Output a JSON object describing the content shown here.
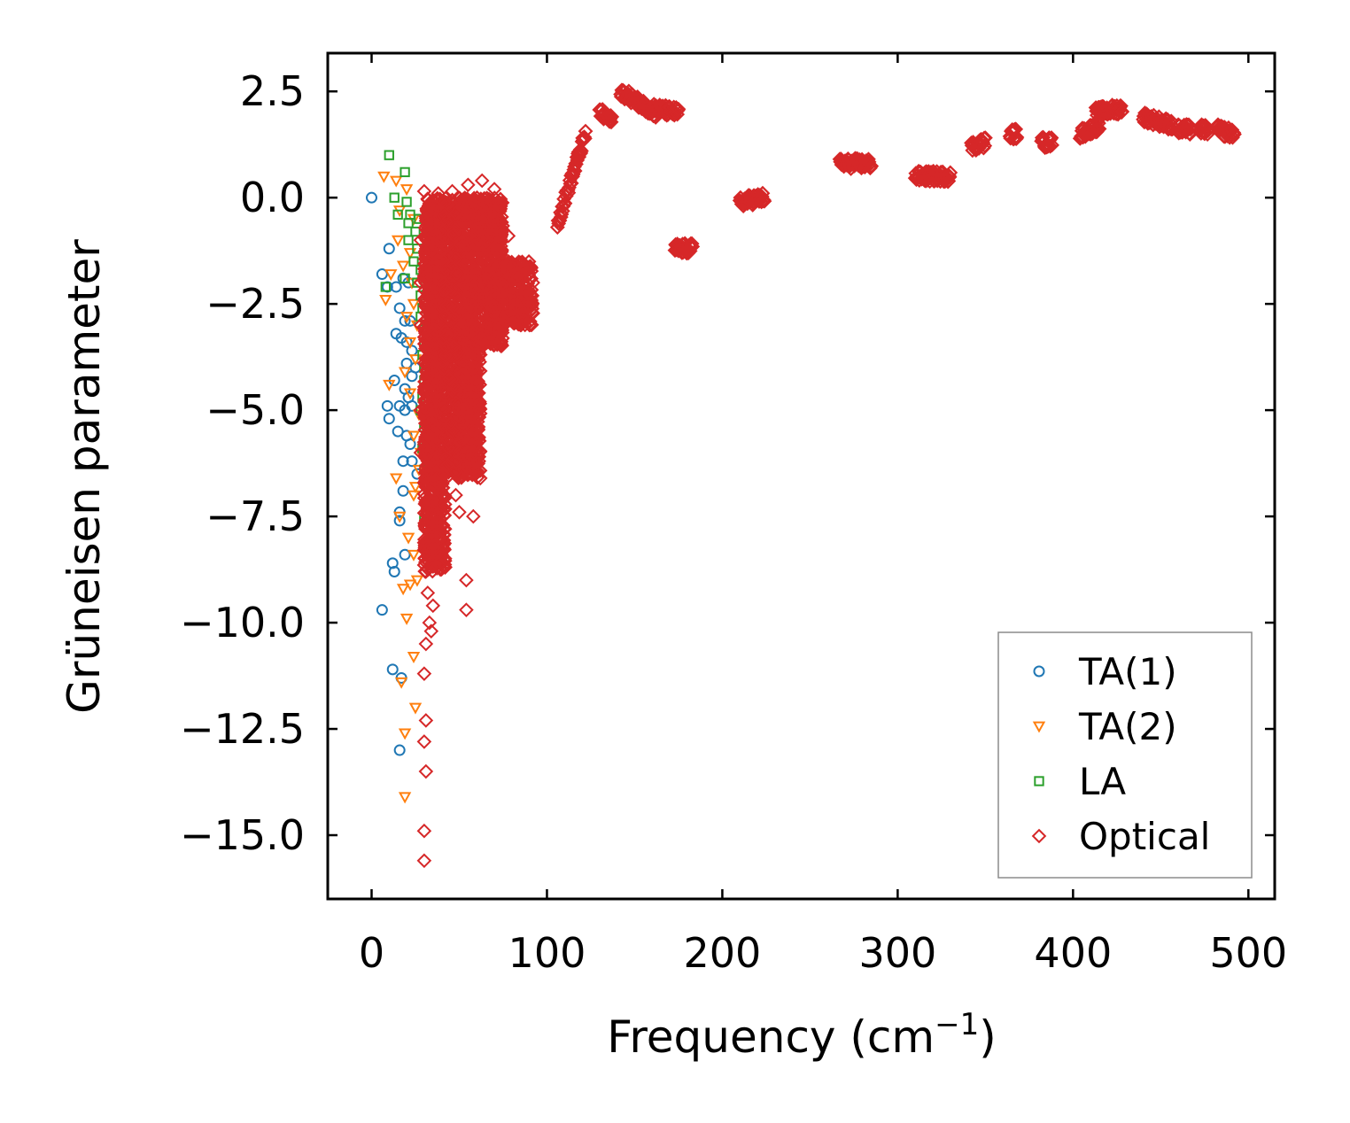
{
  "chart_data": {
    "type": "scatter",
    "title": "",
    "xlabel": "Frequency (cm",
    "xlabel_sup": "−1",
    "xlabel_close": ")",
    "ylabel": "Grüneisen parameter",
    "xlim": [
      -25,
      515
    ],
    "ylim": [
      -16.5,
      3.4
    ],
    "xticks": [
      0,
      100,
      200,
      300,
      400,
      500
    ],
    "xtick_labels": [
      "0",
      "100",
      "200",
      "300",
      "400",
      "500"
    ],
    "yticks": [
      2.5,
      0.0,
      -2.5,
      -5.0,
      -7.5,
      -10.0,
      -12.5,
      -15.0
    ],
    "ytick_labels": [
      "2.5",
      "0.0",
      "−2.5",
      "−5.0",
      "−7.5",
      "−10.0",
      "−12.5",
      "−15.0"
    ],
    "grid": false,
    "legend_position": "bottom-right",
    "series": [
      {
        "name": "TA(1)",
        "marker": "circle",
        "color": "#1f77b4",
        "points": [
          [
            0,
            0
          ],
          [
            10,
            -1.2
          ],
          [
            6,
            -1.8
          ],
          [
            9,
            -2.1
          ],
          [
            14,
            -2.1
          ],
          [
            18,
            -1.9
          ],
          [
            21,
            -2.0
          ],
          [
            16,
            -2.6
          ],
          [
            19,
            -2.9
          ],
          [
            22,
            -2.9
          ],
          [
            14,
            -3.2
          ],
          [
            17,
            -3.3
          ],
          [
            20,
            -3.4
          ],
          [
            23,
            -3.6
          ],
          [
            20,
            -3.9
          ],
          [
            25,
            -4.0
          ],
          [
            23,
            -4.2
          ],
          [
            13,
            -4.3
          ],
          [
            19,
            -4.5
          ],
          [
            21,
            -4.7
          ],
          [
            9,
            -4.9
          ],
          [
            16,
            -4.9
          ],
          [
            19,
            -5.0
          ],
          [
            23,
            -4.9
          ],
          [
            10,
            -5.2
          ],
          [
            15,
            -5.5
          ],
          [
            20,
            -5.6
          ],
          [
            22,
            -5.8
          ],
          [
            18,
            -6.2
          ],
          [
            23,
            -6.2
          ],
          [
            26,
            -6.5
          ],
          [
            18,
            -6.9
          ],
          [
            16,
            -7.4
          ],
          [
            16,
            -7.6
          ],
          [
            19,
            -8.4
          ],
          [
            12,
            -8.6
          ],
          [
            13,
            -8.8
          ],
          [
            6,
            -9.7
          ],
          [
            12,
            -11.1
          ],
          [
            17,
            -11.3
          ],
          [
            16,
            -13.0
          ]
        ]
      },
      {
        "name": "TA(2)",
        "marker": "triangle-down",
        "color": "#ff7f0e",
        "points": [
          [
            7,
            0.5
          ],
          [
            14,
            0.4
          ],
          [
            20,
            0.2
          ],
          [
            16,
            -0.3
          ],
          [
            24,
            -0.5
          ],
          [
            15,
            -1.0
          ],
          [
            22,
            -1.3
          ],
          [
            18,
            -1.6
          ],
          [
            11,
            -1.8
          ],
          [
            23,
            -2.0
          ],
          [
            8,
            -2.4
          ],
          [
            24,
            -2.5
          ],
          [
            20,
            -2.8
          ],
          [
            26,
            -3.0
          ],
          [
            22,
            -3.4
          ],
          [
            25,
            -3.8
          ],
          [
            19,
            -4.1
          ],
          [
            10,
            -4.4
          ],
          [
            22,
            -4.6
          ],
          [
            27,
            -5.1
          ],
          [
            24,
            -5.6
          ],
          [
            28,
            -6.0
          ],
          [
            27,
            -6.4
          ],
          [
            14,
            -6.6
          ],
          [
            25,
            -6.8
          ],
          [
            24,
            -7.0
          ],
          [
            16,
            -7.5
          ],
          [
            21,
            -8.0
          ],
          [
            24,
            -8.4
          ],
          [
            26,
            -9.0
          ],
          [
            18,
            -9.2
          ],
          [
            22,
            -9.1
          ],
          [
            20,
            -9.9
          ],
          [
            24,
            -10.8
          ],
          [
            17,
            -11.4
          ],
          [
            25,
            -12.0
          ],
          [
            19,
            -12.6
          ],
          [
            19,
            -14.1
          ]
        ]
      },
      {
        "name": "LA",
        "marker": "square",
        "color": "#2ca02c",
        "points": [
          [
            10,
            1.0
          ],
          [
            19,
            0.6
          ],
          [
            13,
            0.0
          ],
          [
            20,
            -0.1
          ],
          [
            15,
            -0.4
          ],
          [
            22,
            -0.4
          ],
          [
            27,
            -0.5
          ],
          [
            21,
            -0.6
          ],
          [
            25,
            -0.8
          ],
          [
            21,
            -1.0
          ],
          [
            26,
            -1.2
          ],
          [
            24,
            -1.5
          ],
          [
            28,
            -1.7
          ],
          [
            19,
            -1.9
          ],
          [
            26,
            -2.0
          ],
          [
            8,
            -2.1
          ],
          [
            28,
            -2.3
          ],
          [
            29,
            -2.6
          ],
          [
            28,
            -2.8
          ],
          [
            30,
            -3.1
          ],
          [
            30,
            -3.4
          ],
          [
            29,
            -3.7
          ],
          [
            30,
            -4.0
          ],
          [
            30,
            -4.3
          ],
          [
            29,
            -4.7
          ],
          [
            28,
            -5.0
          ],
          [
            30,
            -5.4
          ],
          [
            29,
            -5.9
          ],
          [
            30,
            -6.4
          ],
          [
            30,
            -7.6
          ]
        ]
      },
      {
        "name": "Optical",
        "marker": "diamond",
        "color": "#d62728",
        "dense_regions": [
          {
            "x": [
              30,
              75
            ],
            "y": [
              -3.5,
              0.0
            ]
          },
          {
            "x": [
              75,
              92
            ],
            "y": [
              -3.0,
              -1.5
            ]
          },
          {
            "x": [
              30,
              62
            ],
            "y": [
              -6.6,
              -3.5
            ]
          },
          {
            "x": [
              30,
              42
            ],
            "y": [
              -8.8,
              -6.6
            ]
          }
        ],
        "points": [
          [
            30,
            0.15
          ],
          [
            38,
            0.1
          ],
          [
            46,
            0.15
          ],
          [
            55,
            0.3
          ],
          [
            63,
            0.4
          ],
          [
            70,
            0.2
          ],
          [
            44,
            -0.5
          ],
          [
            60,
            -0.4
          ],
          [
            72,
            -0.6
          ],
          [
            78,
            -0.9
          ],
          [
            84,
            -1.8
          ],
          [
            88,
            -2.2
          ],
          [
            92,
            -2.0
          ],
          [
            86,
            -2.6
          ],
          [
            90,
            -3.0
          ],
          [
            34,
            -7.6
          ],
          [
            38,
            -8.0
          ],
          [
            40,
            -8.4
          ],
          [
            32,
            -9.3
          ],
          [
            35,
            -9.6
          ],
          [
            33,
            -10.0
          ],
          [
            31,
            -10.5
          ],
          [
            34,
            -10.2
          ],
          [
            30,
            -11.2
          ],
          [
            31,
            -12.3
          ],
          [
            30,
            -12.8
          ],
          [
            31,
            -13.5
          ],
          [
            30,
            -14.9
          ],
          [
            30,
            -15.6
          ],
          [
            54,
            -9.0
          ],
          [
            54,
            -9.7
          ],
          [
            48,
            -7.0
          ],
          [
            50,
            -7.4
          ],
          [
            58,
            -7.5
          ],
          [
            62,
            -6.6
          ],
          [
            28,
            -3.0
          ],
          [
            28,
            -5.0
          ],
          [
            28,
            -6.0
          ],
          [
            28,
            -1.0
          ],
          [
            28,
            -2.0
          ]
        ],
        "branches": [
          {
            "x": [
              106,
              122
            ],
            "y": [
              -0.6,
              1.5
            ]
          },
          {
            "x": [
              130,
              137
            ],
            "y": [
              2.0,
              1.8
            ]
          },
          {
            "x": [
              142,
              162
            ],
            "y": [
              2.5,
              2.0
            ]
          },
          {
            "x": [
              160,
              175
            ],
            "y": [
              2.1,
              2.0
            ]
          },
          {
            "x": [
              173,
              183
            ],
            "y": [
              -1.2,
              -1.2
            ]
          },
          {
            "x": [
              210,
              224
            ],
            "y": [
              -0.1,
              0.0
            ]
          },
          {
            "x": [
              267,
              285
            ],
            "y": [
              0.8,
              0.8
            ]
          },
          {
            "x": [
              310,
              330
            ],
            "y": [
              0.5,
              0.5
            ]
          },
          {
            "x": [
              342,
              350
            ],
            "y": [
              1.2,
              1.3
            ]
          },
          {
            "x": [
              364,
              368
            ],
            "y": [
              1.5,
              1.5
            ]
          },
          {
            "x": [
              382,
              388
            ],
            "y": [
              1.3,
              1.3
            ]
          },
          {
            "x": [
              404,
              415
            ],
            "y": [
              1.5,
              1.7
            ]
          },
          {
            "x": [
              413,
              428
            ],
            "y": [
              2.0,
              2.1
            ]
          },
          {
            "x": [
              440,
              457
            ],
            "y": [
              1.9,
              1.7
            ]
          },
          {
            "x": [
              460,
              467
            ],
            "y": [
              1.6,
              1.6
            ]
          },
          {
            "x": [
              472,
              477
            ],
            "y": [
              1.6,
              1.6
            ]
          },
          {
            "x": [
              482,
              492
            ],
            "y": [
              1.6,
              1.5
            ]
          }
        ]
      }
    ]
  }
}
